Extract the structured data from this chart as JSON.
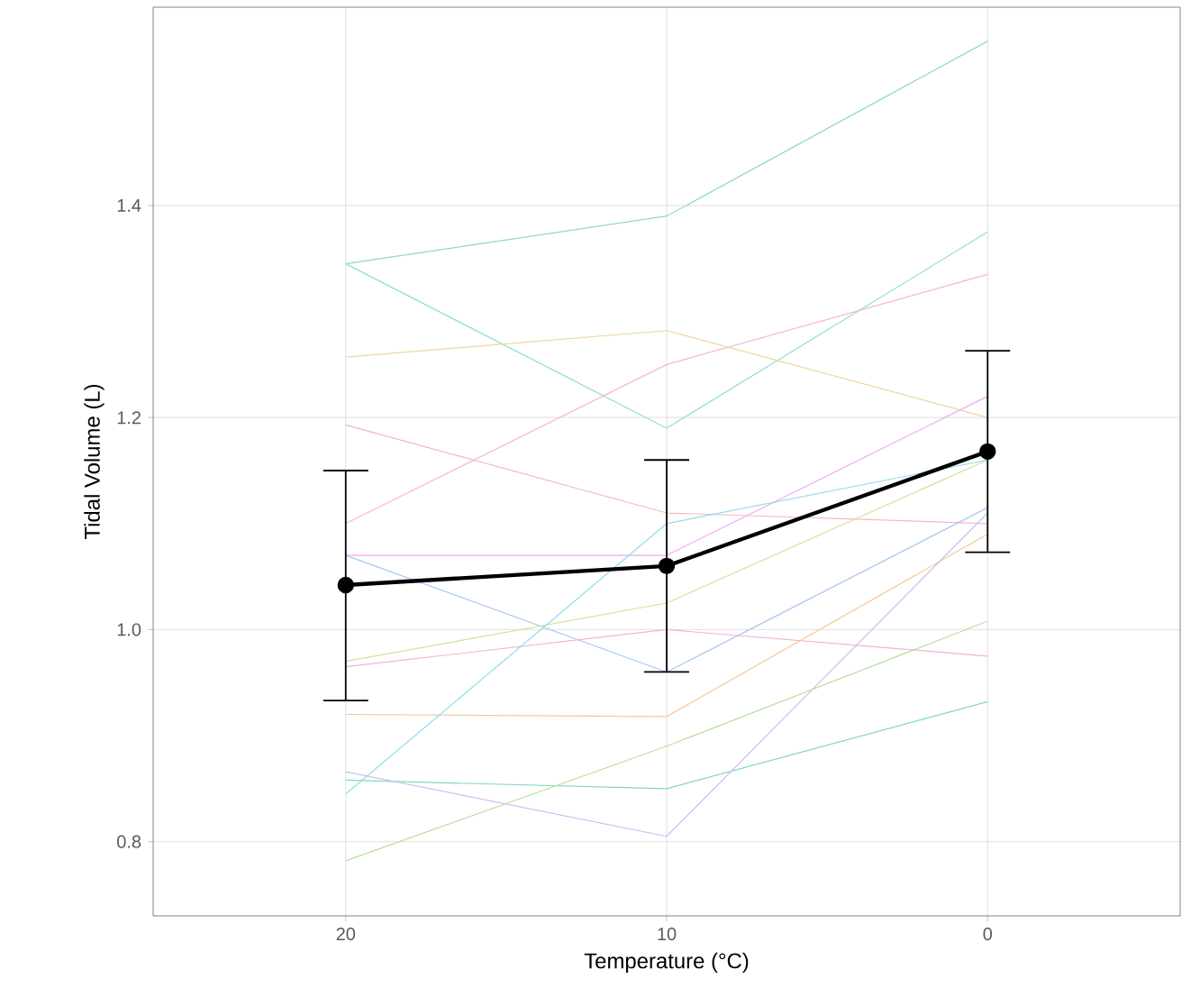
{
  "chart_data": {
    "type": "line",
    "xlabel": "Temperature (°C)",
    "ylabel": "Tidal Volume (L)",
    "categories": [
      "20",
      "10",
      "0"
    ],
    "ylim": [
      0.73,
      1.587
    ],
    "yticks": [
      {
        "value": 0.8,
        "label": "0.8"
      },
      {
        "value": 1.0,
        "label": "1.0"
      },
      {
        "value": 1.2,
        "label": "1.2"
      },
      {
        "value": 1.4,
        "label": "1.4"
      }
    ],
    "grid": true,
    "line_style": "solid",
    "series": [
      {
        "color": "#8fdcb4",
        "values": [
          1.345,
          1.39,
          1.555
        ]
      },
      {
        "color": "#8fdcdc",
        "values": [
          1.345,
          1.19,
          1.375
        ]
      },
      {
        "color": "#ecd79a",
        "values": [
          1.257,
          1.282,
          1.2
        ]
      },
      {
        "color": "#f4b8c0",
        "values": [
          1.193,
          1.11,
          1.1
        ]
      },
      {
        "color": "#f6b6d2",
        "values": [
          1.1,
          1.25,
          1.335
        ]
      },
      {
        "color": "#f2a8f0",
        "values": [
          1.07,
          1.07,
          1.22
        ]
      },
      {
        "color": "#a8c8f4",
        "values": [
          1.07,
          0.96,
          1.115
        ]
      },
      {
        "color": "#d6e09a",
        "values": [
          0.97,
          1.025,
          1.16
        ]
      },
      {
        "color": "#f4b0d8",
        "values": [
          0.965,
          1.0,
          0.975
        ]
      },
      {
        "color": "#f6c898",
        "values": [
          0.92,
          0.918,
          1.09
        ]
      },
      {
        "color": "#90dcec",
        "values": [
          0.845,
          1.1,
          1.16
        ]
      },
      {
        "color": "#80d8c0",
        "values": [
          0.858,
          0.85,
          0.932
        ]
      },
      {
        "color": "#c8c0f0",
        "values": [
          0.866,
          0.805,
          1.11
        ]
      },
      {
        "color": "#b8e0a0",
        "values": [
          0.782,
          0.89,
          1.008
        ]
      },
      {
        "color": "#000000",
        "marker": "circle",
        "values": [
          1.042,
          1.06,
          1.168
        ],
        "errors": [
          [
            0.933,
            1.15
          ],
          [
            0.96,
            1.16
          ],
          [
            1.073,
            1.263
          ]
        ]
      }
    ]
  }
}
